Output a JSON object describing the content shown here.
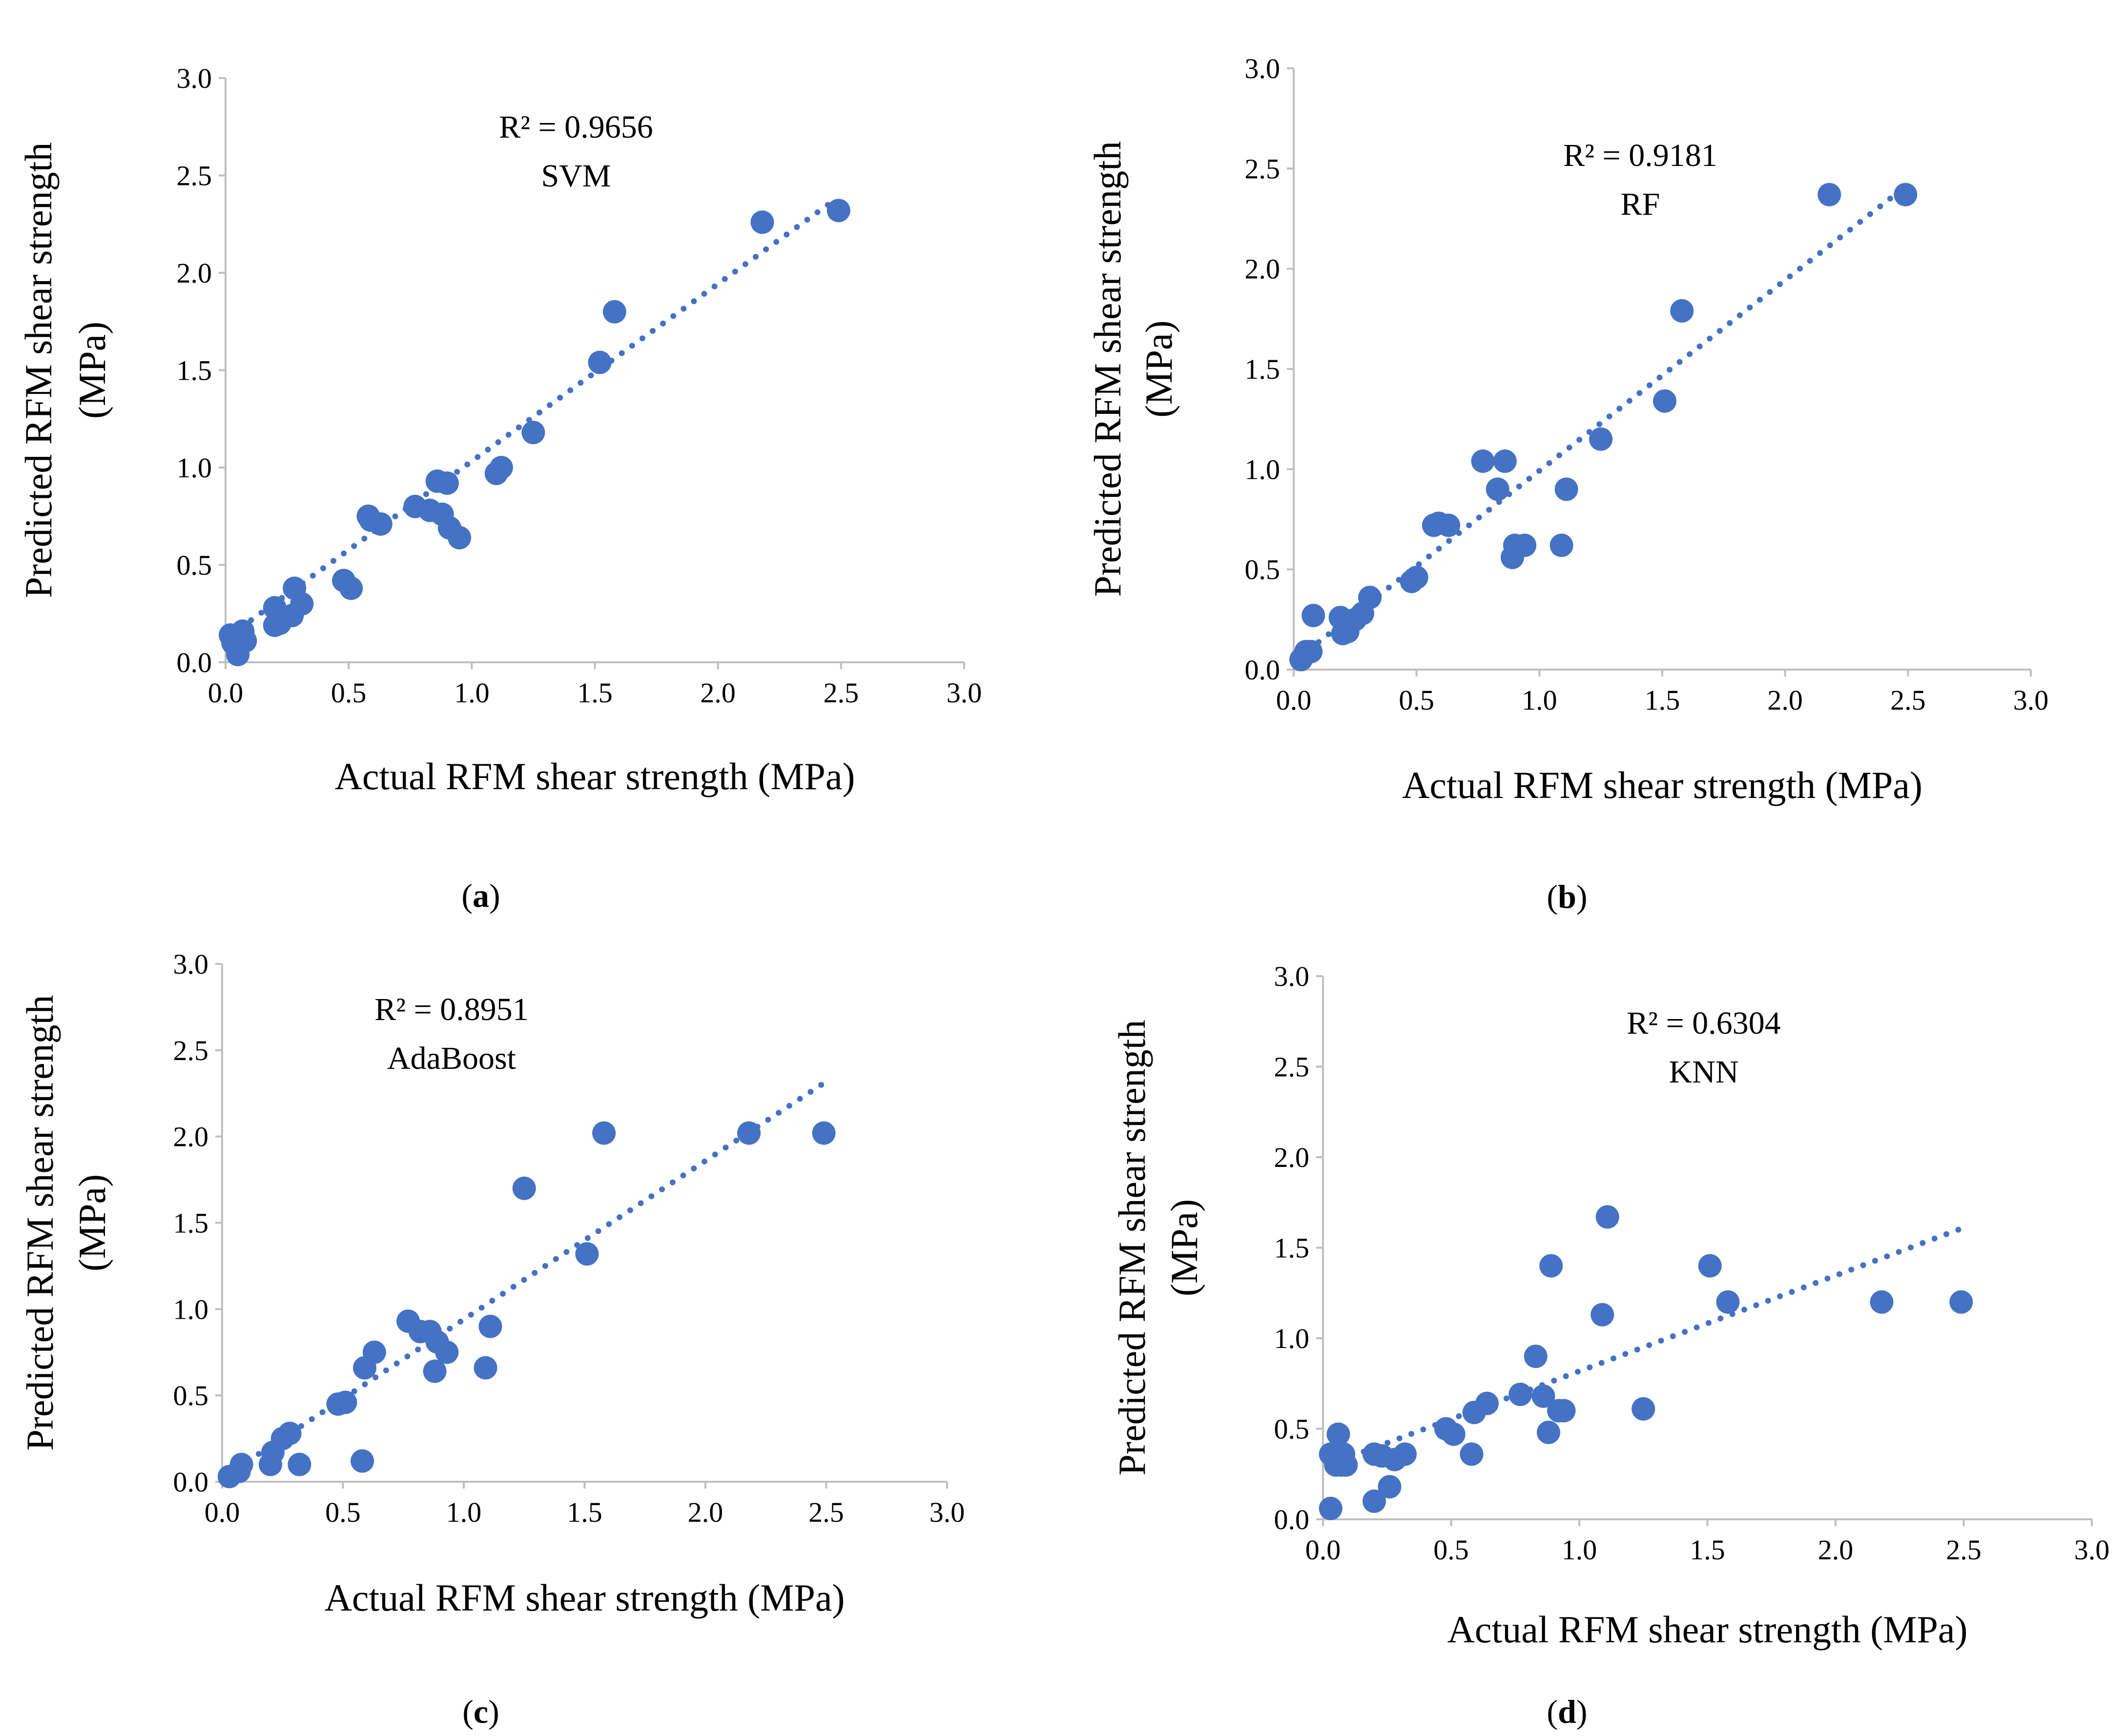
{
  "figure": {
    "panels": [
      {
        "id": "a",
        "label_open": "(",
        "label_letter": "a",
        "label_close": ")"
      },
      {
        "id": "b",
        "label_open": "(",
        "label_letter": "b",
        "label_close": ")"
      },
      {
        "id": "c",
        "label_open": "(",
        "label_letter": "c",
        "label_close": ")"
      },
      {
        "id": "d",
        "label_open": "(",
        "label_letter": "d",
        "label_close": ")"
      }
    ]
  },
  "colors": {
    "marker": "#4472C4",
    "trendline": "#4472C4",
    "axis": "#BFBFBF"
  },
  "chart_data": [
    {
      "type": "scatter",
      "model": "SVM",
      "r2_label": "R² = 0.9656",
      "xlabel": "Actual RFM shear strength (MPa)",
      "ylabel_line1": "Predicted RFM shear strength",
      "ylabel_line2": "(MPa)",
      "xlim": [
        0,
        3
      ],
      "ylim": [
        0,
        3
      ],
      "ticks": [
        "0.0",
        "0.5",
        "1.0",
        "1.5",
        "2.0",
        "2.5",
        "3.0"
      ],
      "trendline": {
        "x": [
          0.02,
          2.48
        ],
        "y": [
          0.14,
          2.38
        ]
      },
      "points": [
        [
          0.02,
          0.14
        ],
        [
          0.03,
          0.1
        ],
        [
          0.05,
          0.04
        ],
        [
          0.07,
          0.16
        ],
        [
          0.08,
          0.11
        ],
        [
          0.2,
          0.28
        ],
        [
          0.2,
          0.19
        ],
        [
          0.22,
          0.2
        ],
        [
          0.27,
          0.24
        ],
        [
          0.28,
          0.38
        ],
        [
          0.31,
          0.3
        ],
        [
          0.48,
          0.42
        ],
        [
          0.51,
          0.38
        ],
        [
          0.58,
          0.75
        ],
        [
          0.59,
          0.73
        ],
        [
          0.63,
          0.71
        ],
        [
          0.77,
          0.8
        ],
        [
          0.83,
          0.78
        ],
        [
          0.86,
          0.93
        ],
        [
          0.88,
          0.76
        ],
        [
          0.9,
          0.92
        ],
        [
          0.91,
          0.69
        ],
        [
          0.95,
          0.64
        ],
        [
          1.1,
          0.97
        ],
        [
          1.12,
          1.0
        ],
        [
          1.25,
          1.18
        ],
        [
          1.52,
          1.54
        ],
        [
          1.58,
          1.8
        ],
        [
          2.18,
          2.26
        ],
        [
          2.49,
          2.32
        ]
      ]
    },
    {
      "type": "scatter",
      "model": "RF",
      "r2_label": "R² = 0.9181",
      "xlabel": "Actual RFM shear strength (MPa)",
      "ylabel_line1": "Predicted RFM shear strength",
      "ylabel_line2": "(MPa)",
      "xlim": [
        0,
        3
      ],
      "ylim": [
        0,
        3
      ],
      "ticks": [
        "0.0",
        "0.5",
        "1.0",
        "1.5",
        "2.0",
        "2.5",
        "3.0"
      ],
      "trendline": {
        "x": [
          0.02,
          2.48
        ],
        "y": [
          0.06,
          2.4
        ]
      },
      "points": [
        [
          0.03,
          0.05
        ],
        [
          0.05,
          0.09
        ],
        [
          0.07,
          0.09
        ],
        [
          0.08,
          0.27
        ],
        [
          0.19,
          0.26
        ],
        [
          0.2,
          0.18
        ],
        [
          0.22,
          0.19
        ],
        [
          0.25,
          0.25
        ],
        [
          0.28,
          0.28
        ],
        [
          0.31,
          0.36
        ],
        [
          0.48,
          0.44
        ],
        [
          0.5,
          0.46
        ],
        [
          0.57,
          0.72
        ],
        [
          0.59,
          0.73
        ],
        [
          0.63,
          0.72
        ],
        [
          0.77,
          1.04
        ],
        [
          0.83,
          0.9
        ],
        [
          0.86,
          1.04
        ],
        [
          0.89,
          0.56
        ],
        [
          0.9,
          0.62
        ],
        [
          0.94,
          0.62
        ],
        [
          1.09,
          0.62
        ],
        [
          1.11,
          0.9
        ],
        [
          1.25,
          1.15
        ],
        [
          1.51,
          1.34
        ],
        [
          1.58,
          1.79
        ],
        [
          2.18,
          2.37
        ],
        [
          2.49,
          2.37
        ]
      ]
    },
    {
      "type": "scatter",
      "model": "AdaBoost",
      "r2_label": "R² = 0.8951",
      "xlabel": "Actual RFM shear strength (MPa)",
      "ylabel_line1": "Predicted RFM shear strength",
      "ylabel_line2": "(MPa)",
      "xlim": [
        0,
        3
      ],
      "ylim": [
        0,
        3
      ],
      "ticks": [
        "0.0",
        "0.5",
        "1.0",
        "1.5",
        "2.0",
        "2.5",
        "3.0"
      ],
      "trendline": {
        "x": [
          0.02,
          2.48
        ],
        "y": [
          0.04,
          2.3
        ]
      },
      "points": [
        [
          0.03,
          0.03
        ],
        [
          0.07,
          0.06
        ],
        [
          0.08,
          0.1
        ],
        [
          0.2,
          0.1
        ],
        [
          0.21,
          0.17
        ],
        [
          0.25,
          0.25
        ],
        [
          0.28,
          0.28
        ],
        [
          0.32,
          0.1
        ],
        [
          0.48,
          0.45
        ],
        [
          0.51,
          0.46
        ],
        [
          0.58,
          0.12
        ],
        [
          0.59,
          0.66
        ],
        [
          0.63,
          0.75
        ],
        [
          0.77,
          0.93
        ],
        [
          0.82,
          0.87
        ],
        [
          0.86,
          0.87
        ],
        [
          0.88,
          0.64
        ],
        [
          0.89,
          0.81
        ],
        [
          0.93,
          0.75
        ],
        [
          1.09,
          0.66
        ],
        [
          1.11,
          0.9
        ],
        [
          1.25,
          1.7
        ],
        [
          1.51,
          1.32
        ],
        [
          1.58,
          2.02
        ],
        [
          2.18,
          2.02
        ],
        [
          2.49,
          2.02
        ]
      ]
    },
    {
      "type": "scatter",
      "model": "KNN",
      "r2_label": "R² = 0.6304",
      "xlabel": "Actual RFM shear strength (MPa)",
      "ylabel_line1": "Predicted RFM shear strength",
      "ylabel_line2": "(MPa)",
      "xlim": [
        0,
        3
      ],
      "ylim": [
        0,
        3
      ],
      "ticks": [
        "0.0",
        "0.5",
        "1.0",
        "1.5",
        "2.0",
        "2.5",
        "3.0"
      ],
      "trendline": {
        "x": [
          0.02,
          2.48
        ],
        "y": [
          0.3,
          1.6
        ]
      },
      "points": [
        [
          0.03,
          0.06
        ],
        [
          0.03,
          0.36
        ],
        [
          0.05,
          0.3
        ],
        [
          0.06,
          0.47
        ],
        [
          0.07,
          0.3
        ],
        [
          0.08,
          0.36
        ],
        [
          0.09,
          0.3
        ],
        [
          0.2,
          0.1
        ],
        [
          0.2,
          0.36
        ],
        [
          0.23,
          0.35
        ],
        [
          0.26,
          0.18
        ],
        [
          0.28,
          0.33
        ],
        [
          0.32,
          0.36
        ],
        [
          0.48,
          0.5
        ],
        [
          0.51,
          0.47
        ],
        [
          0.58,
          0.36
        ],
        [
          0.59,
          0.59
        ],
        [
          0.64,
          0.64
        ],
        [
          0.77,
          0.69
        ],
        [
          0.83,
          0.9
        ],
        [
          0.86,
          0.68
        ],
        [
          0.88,
          0.48
        ],
        [
          0.89,
          1.4
        ],
        [
          0.92,
          0.6
        ],
        [
          0.94,
          0.6
        ],
        [
          1.09,
          1.13
        ],
        [
          1.11,
          1.67
        ],
        [
          1.25,
          0.61
        ],
        [
          1.51,
          1.4
        ],
        [
          1.58,
          1.2
        ],
        [
          2.18,
          1.2
        ],
        [
          2.49,
          1.2
        ]
      ]
    }
  ]
}
